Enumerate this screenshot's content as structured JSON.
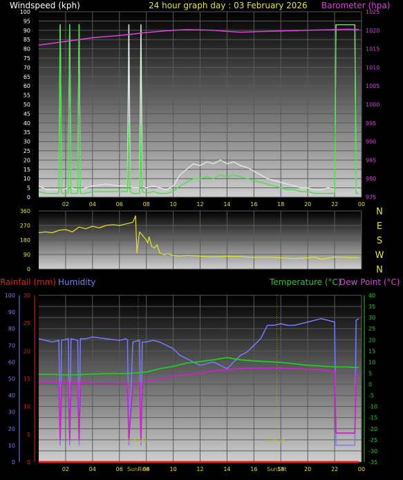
{
  "title": "24 hour graph day : 03 February 2026",
  "colors": {
    "wind": "#4de04d",
    "gust": "#d8ecd8",
    "baro": "#e23ee2",
    "dir": "#e6e61e",
    "rain": "#e02020",
    "hum": "#7a7aff",
    "temp": "#22cc22",
    "dew": "#cc22cc",
    "sun": "#bdbd3a",
    "panel_top": "#000000",
    "panel_bottom": "#cfcfcf"
  },
  "x_ticks": [
    "02",
    "04",
    "06",
    "08",
    "10",
    "12",
    "14",
    "16",
    "18",
    "20",
    "22",
    "00"
  ],
  "chart_data": [
    {
      "type": "line",
      "left_label": "Windspeed (kph)",
      "right_label": "Barometer (hpa)",
      "left_ticks": [
        "0",
        "5",
        "10",
        "15",
        "20",
        "25",
        "30",
        "35",
        "40",
        "45",
        "50",
        "55",
        "60",
        "65",
        "70",
        "75",
        "80",
        "85",
        "90",
        "95",
        "100"
      ],
      "right_ticks": [
        "975",
        "980",
        "985",
        "990",
        "995",
        "1000",
        "1005",
        "1010",
        "1015",
        "1020",
        "1025"
      ],
      "ylim_left": [
        0,
        100
      ],
      "ylim_right": [
        975,
        1025
      ],
      "xlim_hours": [
        0,
        24
      ],
      "series": [
        {
          "key": "gust",
          "x": [
            0,
            0.3,
            0.6,
            1,
            1.5,
            1.6,
            1.7,
            2.2,
            2.3,
            2.4,
            2.9,
            3,
            3.1,
            3.5,
            4,
            5,
            6,
            6.6,
            6.7,
            6.8,
            7,
            7.5,
            7.6,
            7.7,
            8,
            8.5,
            9,
            9.5,
            10,
            10.5,
            11,
            11.5,
            12,
            12.5,
            13,
            13.5,
            14,
            14.5,
            15,
            15.5,
            16,
            16.5,
            17,
            17.5,
            18,
            18.5,
            19,
            19.5,
            20,
            20.5,
            21,
            21.5,
            22,
            22.1,
            22.2,
            23.5,
            23.6,
            23.8
          ],
          "y": [
            6,
            5,
            4,
            4,
            4,
            93,
            4,
            5,
            93,
            5,
            4,
            93,
            4,
            5,
            6,
            7,
            6,
            6,
            93,
            6,
            5,
            5,
            93,
            6,
            5,
            6,
            5,
            4,
            6,
            12,
            15,
            18,
            17,
            19,
            18,
            20,
            18,
            19,
            17,
            16,
            14,
            12,
            10,
            9,
            8,
            7,
            6,
            5,
            5,
            4,
            4,
            5,
            4,
            93,
            93,
            93,
            4,
            4
          ]
        },
        {
          "key": "wind",
          "x": [
            0,
            0.5,
            1,
            1.5,
            1.6,
            1.7,
            2.2,
            2.3,
            2.4,
            2.9,
            3,
            3.1,
            3.5,
            4,
            5,
            6,
            6.6,
            6.7,
            6.8,
            7,
            7.5,
            7.6,
            7.7,
            8,
            8.5,
            9,
            9.5,
            10,
            10.5,
            11,
            11.5,
            12,
            12.5,
            13,
            13.5,
            14,
            14.5,
            15,
            15.5,
            16,
            16.5,
            17,
            17.5,
            18,
            18.5,
            19,
            19.5,
            20,
            20.5,
            21,
            21.5,
            22,
            22.1,
            22.2,
            23.5,
            23.6,
            23.8
          ],
          "y": [
            3,
            2,
            2,
            2,
            93,
            2,
            2,
            93,
            2,
            2,
            93,
            2,
            2,
            3,
            3,
            3,
            3,
            40,
            3,
            2,
            2,
            40,
            3,
            2,
            3,
            2,
            2,
            3,
            6,
            8,
            10,
            10,
            11,
            10,
            12,
            11,
            12,
            11,
            10,
            9,
            8,
            7,
            6,
            5,
            4,
            4,
            3,
            3,
            2,
            2,
            2,
            2,
            93,
            93,
            93,
            2,
            2
          ]
        },
        {
          "key": "baro",
          "axis": "right",
          "x": [
            0,
            1,
            2,
            3,
            4,
            5,
            6,
            7,
            8,
            9,
            10,
            11,
            12,
            13,
            14,
            15,
            16,
            17,
            18,
            19,
            20,
            21,
            22,
            23,
            23.8
          ],
          "y": [
            1016,
            1016.5,
            1017,
            1017.5,
            1018,
            1018.3,
            1018.6,
            1019,
            1019.4,
            1019.7,
            1020,
            1020.2,
            1020.1,
            1020,
            1019.7,
            1019.5,
            1019.6,
            1019.7,
            1019.8,
            1019.9,
            1020,
            1020.1,
            1020.2,
            1020.3,
            1020.2
          ]
        }
      ]
    },
    {
      "type": "line",
      "left_ticks": [
        "0",
        "90",
        "180",
        "270",
        "360"
      ],
      "right_ticks": [
        "N",
        "W",
        "S",
        "E",
        "N"
      ],
      "ylim": [
        0,
        360
      ],
      "xlim_hours": [
        0,
        24
      ],
      "series": [
        {
          "key": "dir",
          "x": [
            0,
            0.5,
            1,
            1.5,
            2,
            2.5,
            3,
            3.5,
            4,
            4.5,
            5,
            5.5,
            6,
            6.5,
            7,
            7.2,
            7.3,
            7.5,
            7.8,
            8,
            8.1,
            8.2,
            8.4,
            8.6,
            8.8,
            9,
            9.3,
            9.6,
            10,
            10.5,
            11,
            12,
            13,
            14,
            15,
            16,
            17,
            18,
            19,
            20,
            20.5,
            21,
            22,
            23,
            23.5,
            23.8
          ],
          "y": [
            225,
            230,
            225,
            240,
            245,
            230,
            260,
            250,
            265,
            255,
            270,
            275,
            270,
            280,
            290,
            330,
            100,
            230,
            200,
            180,
            160,
            200,
            140,
            130,
            150,
            100,
            90,
            95,
            85,
            80,
            85,
            80,
            75,
            80,
            78,
            72,
            74,
            70,
            65,
            70,
            75,
            60,
            75,
            72,
            70,
            70
          ]
        }
      ]
    },
    {
      "type": "line",
      "left_label": "Rainfall (mm)",
      "left_label2": "Humidity",
      "right_label": "Temperature (°C)",
      "right_label2": "Dew Point (°C)",
      "hum_ticks": [
        "0",
        "10",
        "20",
        "30",
        "40",
        "50",
        "60",
        "70",
        "80",
        "90",
        "100"
      ],
      "rain_ticks": [
        "0",
        "5",
        "10",
        "15",
        "20",
        "25",
        "30"
      ],
      "temp_ticks": [
        "-35",
        "-30",
        "-25",
        "-20",
        "-15",
        "-10",
        "-5",
        "0",
        "5",
        "10",
        "15",
        "20",
        "25",
        "30",
        "35",
        "40"
      ],
      "ylim_hum": [
        0,
        100
      ],
      "ylim_rain": [
        0,
        30
      ],
      "ylim_temp": [
        -35,
        40
      ],
      "xlim_hours": [
        0,
        24
      ],
      "annotations": [
        "SunRise",
        "SunSet"
      ],
      "series": [
        {
          "key": "hum",
          "x": [
            0,
            0.5,
            1,
            1.5,
            1.6,
            1.7,
            2.2,
            2.3,
            2.4,
            2.9,
            3,
            3.1,
            3.5,
            4,
            5,
            6,
            6.5,
            6.6,
            6.7,
            7,
            7.5,
            7.6,
            7.7,
            8,
            8.5,
            9,
            9.5,
            10,
            10.5,
            11,
            11.5,
            12,
            12.5,
            13,
            13.5,
            14,
            14.5,
            15,
            15.5,
            16,
            16.5,
            17,
            17.5,
            18,
            18.5,
            19,
            19.5,
            20,
            20.5,
            21,
            21.5,
            22,
            22.1,
            22.2,
            23.5,
            23.6,
            23.8
          ],
          "y": [
            74,
            73,
            72,
            73,
            10,
            73,
            74,
            10,
            74,
            73,
            10,
            74,
            74,
            75,
            74,
            73,
            74,
            73,
            10,
            72,
            73,
            10,
            72,
            72,
            73,
            72,
            70,
            68,
            64,
            62,
            60,
            58,
            59,
            60,
            58,
            56,
            60,
            64,
            66,
            70,
            74,
            82,
            82,
            83,
            82,
            82,
            83,
            84,
            85,
            86,
            85,
            84,
            10,
            10,
            10,
            85,
            86
          ]
        },
        {
          "key": "temp",
          "axis": "temp",
          "x": [
            0,
            1,
            2,
            3,
            4,
            5,
            6,
            7,
            8,
            9,
            10,
            11,
            12,
            13,
            14,
            15,
            16,
            17,
            18,
            19,
            20,
            21,
            22,
            23,
            23.8
          ],
          "y": [
            4.5,
            4.5,
            4.2,
            4.3,
            4.6,
            4.8,
            4.7,
            5,
            5.5,
            7,
            8,
            9.5,
            10.2,
            11,
            12,
            11,
            10.5,
            10.2,
            9.8,
            9.2,
            8.5,
            8.2,
            7.8,
            7.8,
            7.5
          ]
        },
        {
          "key": "dew",
          "axis": "temp",
          "x": [
            0,
            0.5,
            1,
            1.5,
            1.6,
            1.7,
            2.2,
            2.3,
            2.4,
            2.9,
            3,
            3.1,
            3.5,
            4,
            5,
            6,
            6.5,
            6.6,
            6.7,
            7,
            7.5,
            7.6,
            7.7,
            8,
            9,
            10,
            11,
            12,
            13,
            14,
            15,
            16,
            17,
            18,
            19,
            20,
            21,
            22,
            22.1,
            22.2,
            23.5,
            23.6,
            23.8
          ],
          "y": [
            1,
            1,
            1,
            1,
            -25,
            1,
            1,
            -25,
            1,
            1,
            -25,
            1,
            1,
            0.5,
            0.5,
            0.5,
            0.6,
            0.6,
            -25,
            0.6,
            0.6,
            -25,
            1,
            1.5,
            2,
            3.5,
            4.5,
            5,
            6,
            6.5,
            7,
            7.2,
            7.3,
            7.2,
            7,
            6.8,
            6.6,
            5.5,
            -22,
            -22,
            -22,
            4,
            5
          ]
        },
        {
          "key": "rain",
          "axis": "rain",
          "x": [
            0,
            23.8
          ],
          "y": [
            0,
            0
          ]
        }
      ]
    }
  ]
}
